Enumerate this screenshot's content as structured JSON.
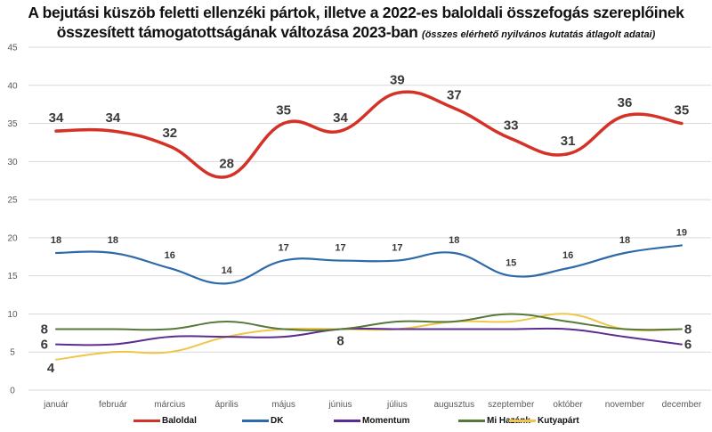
{
  "chart_data": {
    "type": "line",
    "title": "A bejutási küszöb feletti ellenzéki pártok, illetve a 2022-es baloldali összefogás szereplőinek",
    "title_line2": "összesített támogatottságának változása 2023-ban",
    "subtitle": "(összes elérhető nyilvános kutatás átlagolt adatai)",
    "xlabel": "",
    "ylabel": "",
    "ylim": [
      0,
      45
    ],
    "yticks": [
      0,
      5,
      10,
      15,
      20,
      25,
      30,
      35,
      40,
      45
    ],
    "grid": true,
    "legend_position": "bottom",
    "categories": [
      "január",
      "február",
      "március",
      "április",
      "május",
      "június",
      "július",
      "augusztus",
      "szeptember",
      "október",
      "november",
      "december"
    ],
    "series": [
      {
        "name": "Baloldal",
        "color": "#d43227",
        "values": [
          34,
          34,
          32,
          28,
          35,
          34,
          39,
          37,
          33,
          31,
          36,
          35
        ],
        "labels": [
          "34",
          "34",
          "32",
          "28",
          "35",
          "34",
          "39",
          "37",
          "33",
          "31",
          "36",
          "35"
        ]
      },
      {
        "name": "DK",
        "color": "#2e6aa8",
        "values": [
          18,
          18,
          16,
          14,
          17,
          17,
          17,
          18,
          15,
          16,
          18,
          19
        ],
        "labels": [
          "18",
          "18",
          "16",
          "14",
          "17",
          "17",
          "17",
          "18",
          "15",
          "16",
          "18",
          "19"
        ]
      },
      {
        "name": "Momentum",
        "color": "#5b2c91",
        "values": [
          6,
          6,
          7,
          7,
          7,
          8,
          8,
          8,
          8,
          8,
          7,
          6
        ]
      },
      {
        "name": "Mi Hazánk",
        "color": "#56793a",
        "values": [
          8,
          8,
          8,
          9,
          8,
          8,
          9,
          9,
          10,
          9,
          8,
          8
        ]
      },
      {
        "name": "Kutyapárt",
        "color": "#efc64a",
        "values": [
          4,
          5,
          5,
          7,
          8,
          8,
          8,
          9,
          9,
          10,
          8,
          8
        ]
      }
    ],
    "annotations": [
      {
        "series": "Mi Hazánk",
        "month": "január",
        "text": "8"
      },
      {
        "series": "Momentum",
        "month": "január",
        "text": "6"
      },
      {
        "series": "Kutyapárt",
        "month": "január",
        "text": "4"
      },
      {
        "series": "lower-cluster",
        "month": "június",
        "text": "8"
      },
      {
        "series": "Kutyapárt",
        "month": "december",
        "text": "8"
      },
      {
        "series": "Momentum",
        "month": "december",
        "text": "6"
      }
    ]
  }
}
